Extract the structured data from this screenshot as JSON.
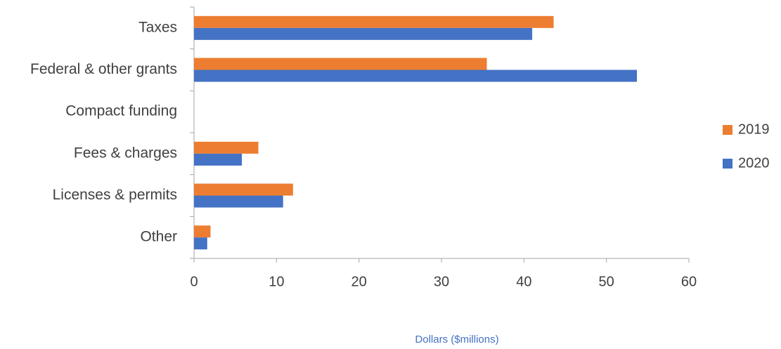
{
  "chart_data": {
    "type": "bar",
    "orientation": "horizontal",
    "x_label": "Dollars ($millions)",
    "categories": [
      "Taxes",
      "Federal & other grants",
      "Compact funding",
      "Fees & charges",
      "Licenses & permits",
      "Other"
    ],
    "series": [
      {
        "name": "2019",
        "color": "#ed7d31",
        "values": [
          43.6,
          35.5,
          0,
          7.8,
          12.0,
          2.0
        ]
      },
      {
        "name": "2020",
        "color": "#4472c4",
        "values": [
          41.0,
          53.7,
          0,
          5.8,
          10.8,
          1.6
        ]
      }
    ],
    "xlim": [
      0,
      60
    ],
    "xticks": [
      0,
      10,
      20,
      30,
      40,
      50,
      60
    ],
    "legend": "right"
  }
}
